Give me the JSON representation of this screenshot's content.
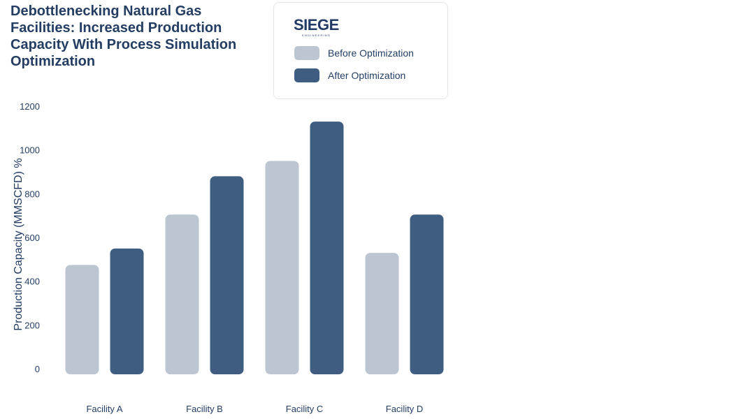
{
  "title": "Debottlenecking Natural Gas Facilities: Increased Production Capacity With Process Simulation Optimization",
  "logo": {
    "name": "SIEGE",
    "subtext": "ENGINEERING"
  },
  "legend": [
    {
      "label": "Before Optimization",
      "color": "#bcc6d2"
    },
    {
      "label": "After Optimization",
      "color": "#3f5d80"
    }
  ],
  "chart_data": {
    "type": "bar",
    "title": "Debottlenecking Natural Gas Facilities: Increased Production Capacity With Process Simulation Optimization",
    "xlabel": "",
    "ylabel": "Production Capacity (MMSCFD) %",
    "categories": [
      "Facility A",
      "Facility B",
      "Facility C",
      "Facility D"
    ],
    "series": [
      {
        "name": "Before Optimization",
        "color": "#bcc6d2",
        "values": [
          500,
          730,
          975,
          555
        ]
      },
      {
        "name": "After Optimization",
        "color": "#3f5d80",
        "values": [
          575,
          905,
          1155,
          730
        ]
      }
    ],
    "ylim": [
      0,
      1200
    ],
    "yticks": [
      0,
      200,
      400,
      600,
      800,
      1000,
      1200
    ],
    "grid": false,
    "legend_position": "top"
  }
}
